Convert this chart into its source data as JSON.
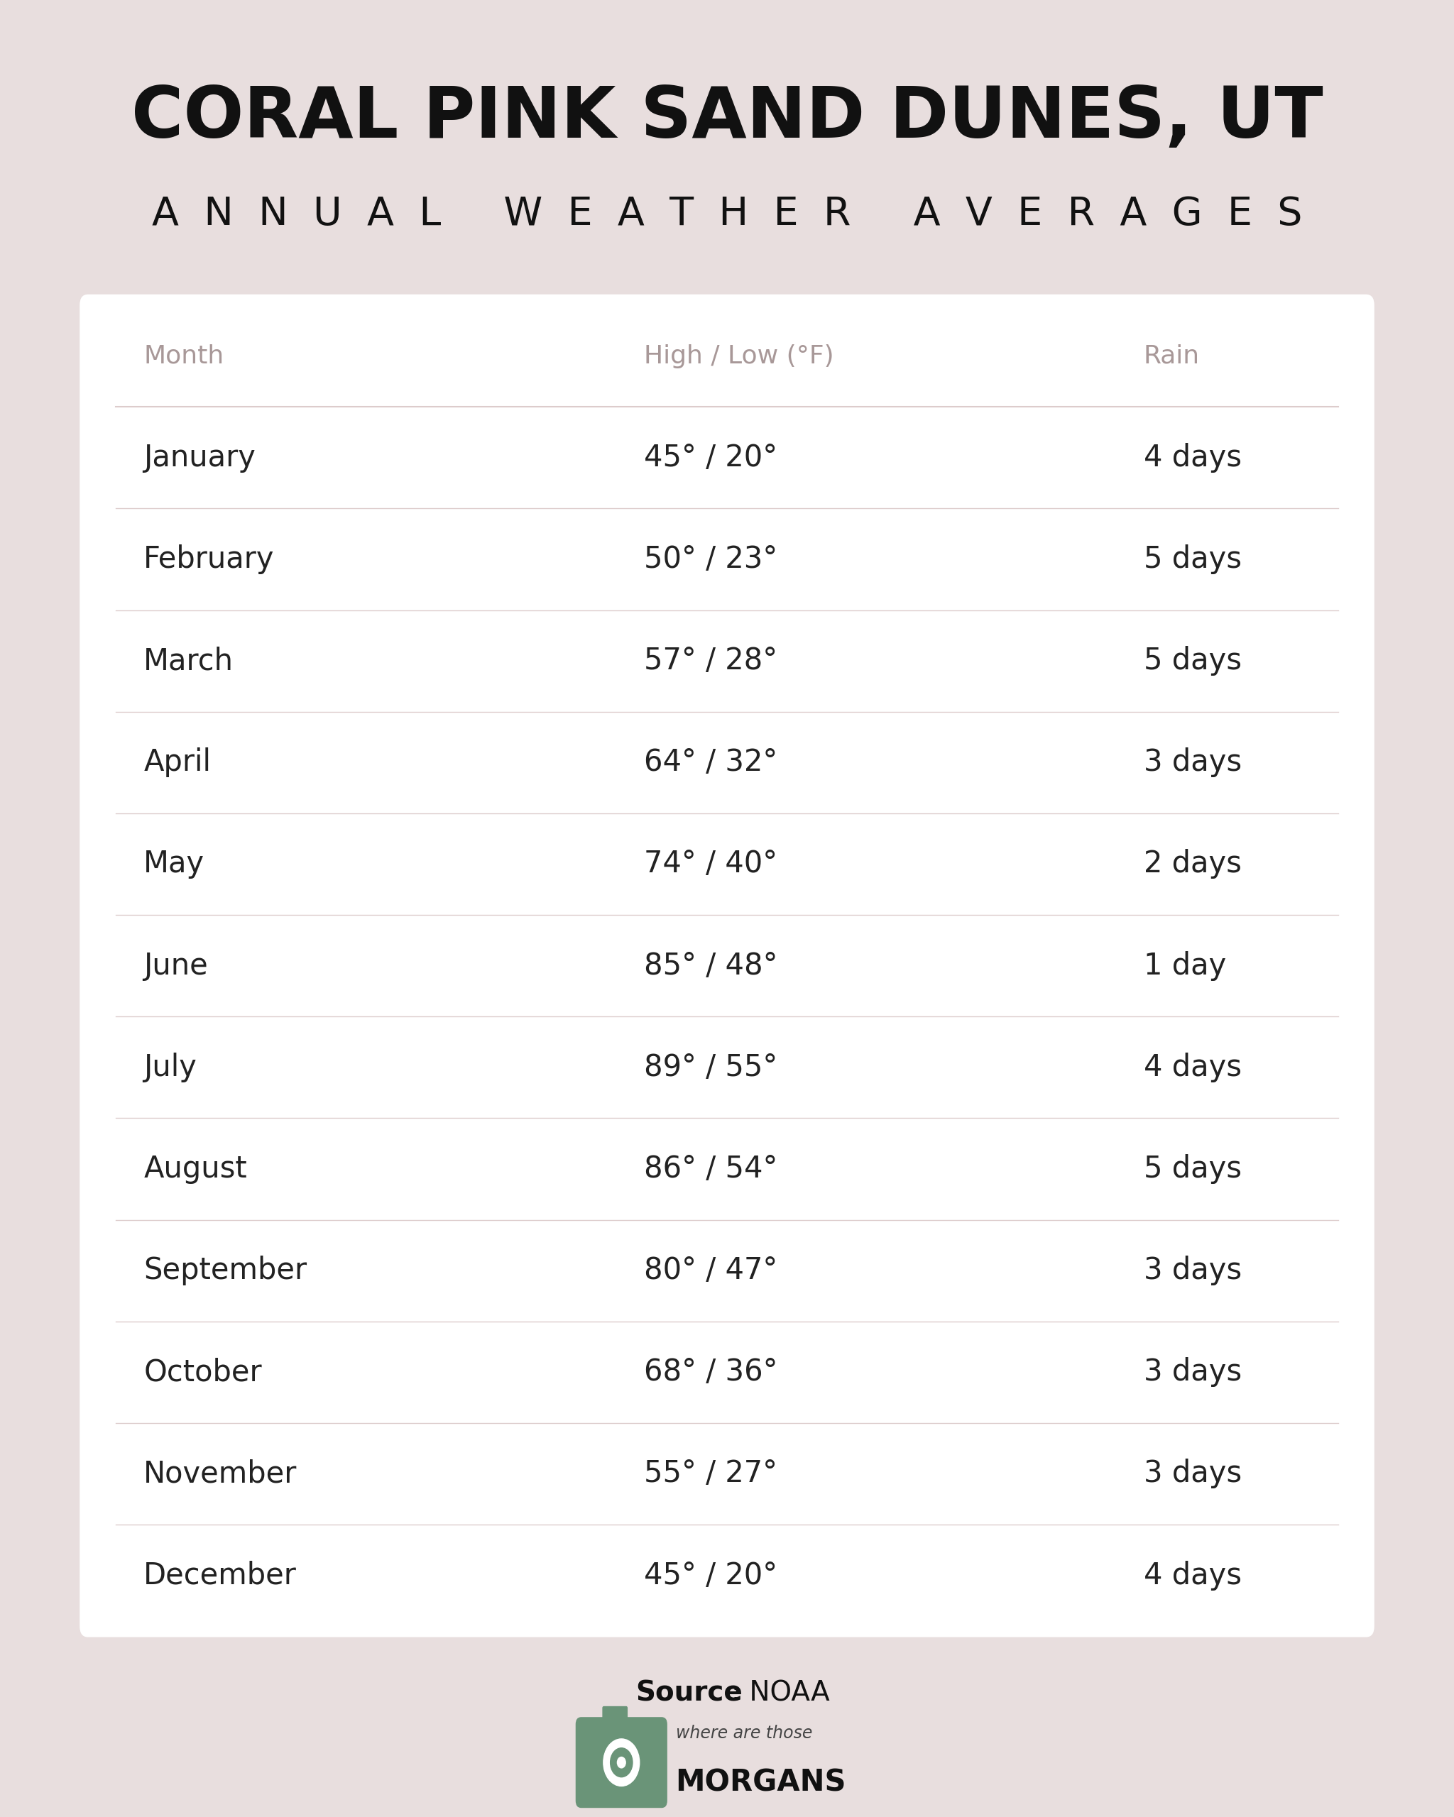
{
  "title_line1": "CORAL PINK SAND DUNES, UT",
  "title_line2": "ANNUAL WEATHER AVERAGES",
  "background_color": "#e8dede",
  "table_background": "#ffffff",
  "header_text_color": "#a89898",
  "body_text_color": "#222222",
  "divider_color": "#ddcccc",
  "source_bold": "Source",
  "source_normal": ": NOAA",
  "columns": [
    "Month",
    "High / Low (°F)",
    "Rain"
  ],
  "months": [
    "January",
    "February",
    "March",
    "April",
    "May",
    "June",
    "July",
    "August",
    "September",
    "October",
    "November",
    "December"
  ],
  "temps": [
    "45° / 20°",
    "50° / 23°",
    "57° / 28°",
    "64° / 32°",
    "74° / 40°",
    "85° / 48°",
    "89° / 55°",
    "86° / 54°",
    "80° / 47°",
    "68° / 36°",
    "55° / 27°",
    "45° / 20°"
  ],
  "rain": [
    "4 days",
    "5 days",
    "5 days",
    "3 days",
    "2 days",
    "1 day",
    "4 days",
    "5 days",
    "3 days",
    "3 days",
    "3 days",
    "4 days"
  ],
  "title1_fontsize": 72,
  "title2_fontsize": 40,
  "header_fontsize": 26,
  "body_fontsize": 30,
  "source_fontsize": 28,
  "logo_color": "#6a9478",
  "logo_text_script": "where are those",
  "logo_text_bold": "MORGANS"
}
